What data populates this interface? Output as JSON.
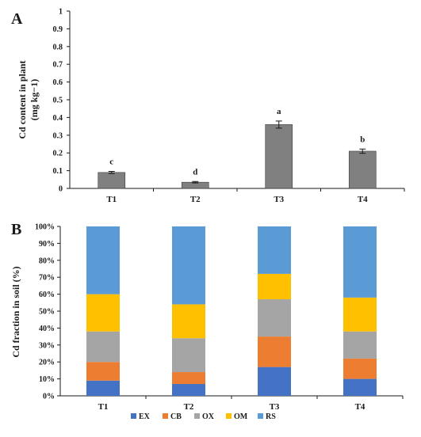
{
  "chart_data": [
    {
      "panel": "A",
      "type": "bar",
      "ylabel_line1": "Cd content in plant",
      "ylabel_line2": "(mg kg−1)",
      "categories": [
        "T1",
        "T2",
        "T3",
        "T4"
      ],
      "values": [
        0.09,
        0.035,
        0.36,
        0.21
      ],
      "errors": [
        0.006,
        0.004,
        0.02,
        0.012
      ],
      "significance": [
        "c",
        "d",
        "a",
        "b"
      ],
      "ylim": [
        0,
        1
      ],
      "yticks": [
        "0",
        "0.1",
        "0.2",
        "0.3",
        "0.4",
        "0.5",
        "0.6",
        "0.7",
        "0.8",
        "0.9",
        "1"
      ],
      "bar_color": "#808080",
      "grid": false
    },
    {
      "panel": "B",
      "type": "bar",
      "stacked": true,
      "percent": true,
      "ylabel": "Cd fraction in soil (%)",
      "categories": [
        "T1",
        "T2",
        "T3",
        "T4"
      ],
      "yticks": [
        "0%",
        "10%",
        "20%",
        "30%",
        "40%",
        "50%",
        "60%",
        "70%",
        "80%",
        "90%",
        "100%"
      ],
      "ylim": [
        0,
        100
      ],
      "series": [
        {
          "name": "EX",
          "color": "#4472C4",
          "values": [
            9,
            7,
            17,
            10
          ]
        },
        {
          "name": "CB",
          "color": "#ED7D31",
          "values": [
            11,
            7,
            18,
            12
          ]
        },
        {
          "name": "OX",
          "color": "#A5A5A5",
          "values": [
            18,
            20,
            22,
            16
          ]
        },
        {
          "name": "OM",
          "color": "#FFC000",
          "values": [
            22,
            20,
            15,
            20
          ]
        },
        {
          "name": "RS",
          "color": "#5B9BD5",
          "values": [
            40,
            46,
            28,
            42
          ]
        }
      ],
      "legend_position": "bottom",
      "grid": false
    }
  ]
}
